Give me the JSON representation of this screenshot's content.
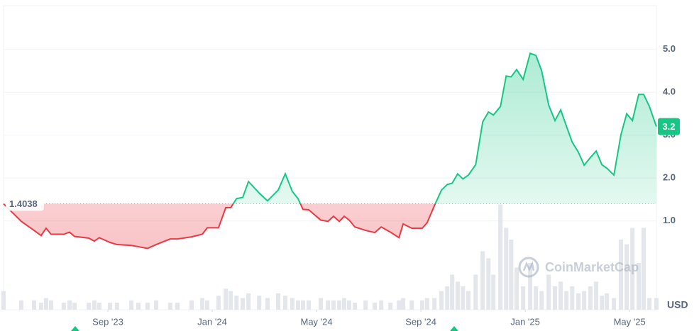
{
  "chart_data": {
    "type": "line",
    "x": [
      0,
      0.68,
      1.17,
      1.44,
      1.63,
      1.82,
      2.31,
      2.53,
      2.72,
      3.27,
      3.48,
      3.67,
      4.08,
      4.35,
      4.9,
      5.17,
      5.52,
      5.85,
      6.39,
      6.67,
      7.21,
      7.62,
      7.81,
      8.24,
      8.52,
      8.71,
      8.93,
      9.17,
      9.39,
      9.8,
      10.12,
      10.53,
      10.8,
      11.07,
      11.29,
      11.48,
      11.7,
      12.16,
      12.44,
      12.65,
      12.87,
      13.06,
      13.25,
      13.47,
      13.88,
      14.23,
      14.48,
      14.83,
      15.16,
      15.32,
      15.65,
      16.05,
      16.24,
      16.52,
      16.79,
      17.01,
      17.2,
      17.41,
      17.61,
      17.82,
      18.1,
      18.37,
      18.59,
      18.78,
      19.05,
      19.27,
      19.46,
      19.67,
      19.92,
      20.19,
      20.41,
      20.63,
      20.9,
      21.14,
      21.36,
      21.58,
      21.8,
      22.04,
      22.26,
      22.5,
      22.72,
      22.94,
      23.13,
      23.4,
      23.67,
      23.89,
      24.11,
      24.35,
      24.54,
      24.76,
      25.03
    ],
    "values": [
      1.4,
      0.99,
      0.78,
      0.66,
      0.83,
      0.69,
      0.69,
      0.74,
      0.64,
      0.6,
      0.53,
      0.61,
      0.5,
      0.45,
      0.43,
      0.4,
      0.36,
      0.45,
      0.58,
      0.58,
      0.63,
      0.69,
      0.84,
      0.84,
      1.31,
      1.31,
      1.52,
      1.55,
      1.92,
      1.65,
      1.47,
      1.72,
      2.1,
      1.69,
      1.52,
      1.27,
      1.26,
      1.02,
      0.99,
      1.11,
      0.99,
      1.11,
      1.02,
      0.86,
      0.78,
      0.73,
      0.86,
      0.74,
      0.61,
      0.93,
      0.83,
      0.83,
      0.96,
      1.36,
      1.72,
      1.85,
      1.88,
      2.1,
      1.98,
      2.07,
      2.31,
      3.31,
      3.54,
      3.47,
      3.67,
      4.38,
      4.36,
      4.53,
      4.3,
      4.91,
      4.86,
      4.5,
      3.7,
      3.34,
      3.59,
      3.21,
      2.84,
      2.6,
      2.3,
      2.48,
      2.63,
      2.31,
      2.23,
      2.07,
      3.01,
      3.5,
      3.34,
      3.95,
      3.95,
      3.67,
      3.2
    ],
    "volume": [
      8,
      4,
      4,
      3,
      5,
      4,
      3,
      4,
      3,
      3,
      4,
      3,
      3,
      3,
      4,
      3,
      3,
      4,
      3,
      3,
      4,
      5,
      4,
      6,
      9,
      8,
      6,
      5,
      7,
      6,
      5,
      7,
      6,
      5,
      4,
      4,
      4,
      5,
      4,
      4,
      4,
      5,
      4,
      3,
      4,
      3,
      4,
      3,
      4,
      5,
      4,
      4,
      5,
      5,
      8,
      10,
      15,
      12,
      10,
      8,
      15,
      25,
      22,
      15,
      45,
      35,
      30,
      18,
      10,
      20,
      10,
      8,
      15,
      10,
      12,
      8,
      10,
      7,
      8,
      10,
      12,
      6,
      7,
      5,
      30,
      28,
      35,
      20,
      35,
      5,
      5
    ],
    "vlim": [
      0,
      130
    ],
    "xlim": [
      0,
      25.03
    ],
    "ylim": [
      -1.07,
      6.02
    ],
    "xticks": [
      {
        "value": 4,
        "label": "Sep '23"
      },
      {
        "value": 8,
        "label": "Jan '24"
      },
      {
        "value": 12,
        "label": "May '24"
      },
      {
        "value": 16,
        "label": "Sep '24"
      },
      {
        "value": 20,
        "label": "Jan '25"
      },
      {
        "value": 24,
        "label": "May '25"
      }
    ],
    "yticks": [
      {
        "value": 1,
        "label": "1.0"
      },
      {
        "value": 2,
        "label": "2.0"
      },
      {
        "value": 3,
        "label": "3.0"
      },
      {
        "value": 4,
        "label": "4.0"
      },
      {
        "value": 5,
        "label": "5.0"
      }
    ],
    "baseline": 1.4038,
    "price_tag": 3.2,
    "y_unit": "USD",
    "watermark": "CoinMarketCap",
    "up_color": "#16c784",
    "down_color": "#ea3943",
    "volume_color": "#e3e6ea",
    "grid": true
  }
}
